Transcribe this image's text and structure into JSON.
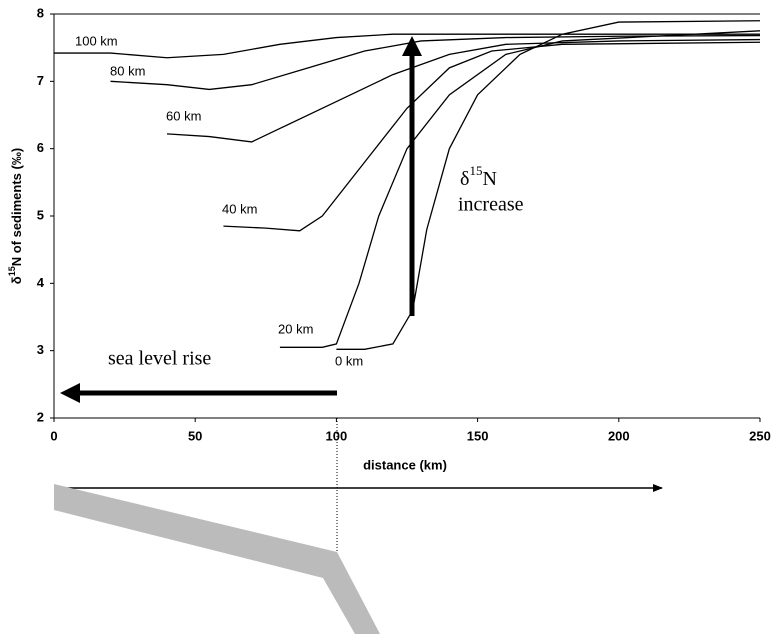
{
  "chart_data": {
    "type": "line",
    "ylabel": {
      "symbol": "δ",
      "isotope": "15",
      "rest": "N of sediments (‰)"
    },
    "xlabel": "distance (km)",
    "annotations": {
      "sea_level": "sea level rise",
      "increase_symbol": "δ",
      "increase_isotope": "15",
      "increase_element": "N",
      "increase_word": "increase"
    },
    "xlim": [
      0,
      250
    ],
    "xticks": [
      0,
      50,
      100,
      150,
      200,
      250
    ],
    "ylim": [
      2,
      8
    ],
    "yticks": [
      2,
      3,
      4,
      5,
      6,
      7,
      8
    ],
    "series": [
      {
        "name": "100 km",
        "color": "#000000",
        "x": [
          0,
          20,
          40,
          60,
          80,
          100,
          120,
          150,
          200,
          250
        ],
        "values": [
          7.42,
          7.42,
          7.35,
          7.4,
          7.55,
          7.65,
          7.7,
          7.7,
          7.7,
          7.7
        ]
      },
      {
        "name": "80 km",
        "color": "#000000",
        "x": [
          20,
          40,
          55,
          70,
          90,
          110,
          130,
          160,
          200,
          250
        ],
        "values": [
          7.0,
          6.95,
          6.88,
          6.95,
          7.2,
          7.45,
          7.6,
          7.65,
          7.67,
          7.68
        ]
      },
      {
        "name": "60 km",
        "color": "#000000",
        "x": [
          40,
          55,
          70,
          80,
          100,
          120,
          140,
          160,
          200,
          250
        ],
        "values": [
          6.22,
          6.18,
          6.1,
          6.3,
          6.7,
          7.1,
          7.4,
          7.55,
          7.6,
          7.62
        ]
      },
      {
        "name": "40 km",
        "color": "#000000",
        "x": [
          60,
          75,
          87,
          95,
          110,
          125,
          140,
          155,
          180,
          250
        ],
        "values": [
          4.85,
          4.82,
          4.78,
          5.0,
          5.8,
          6.6,
          7.2,
          7.45,
          7.55,
          7.58
        ]
      },
      {
        "name": "20 km",
        "color": "#000000",
        "x": [
          80,
          95,
          100,
          108,
          115,
          125,
          140,
          160,
          180,
          250
        ],
        "values": [
          3.05,
          3.05,
          3.1,
          4.0,
          5.0,
          6.0,
          6.8,
          7.4,
          7.6,
          7.75
        ]
      },
      {
        "name": "0 km",
        "color": "#000000",
        "x": [
          100,
          110,
          120,
          127,
          132,
          140,
          150,
          165,
          180,
          200,
          250
        ],
        "values": [
          3.02,
          3.02,
          3.1,
          3.6,
          4.8,
          6.0,
          6.8,
          7.4,
          7.7,
          7.88,
          7.9
        ]
      }
    ]
  }
}
